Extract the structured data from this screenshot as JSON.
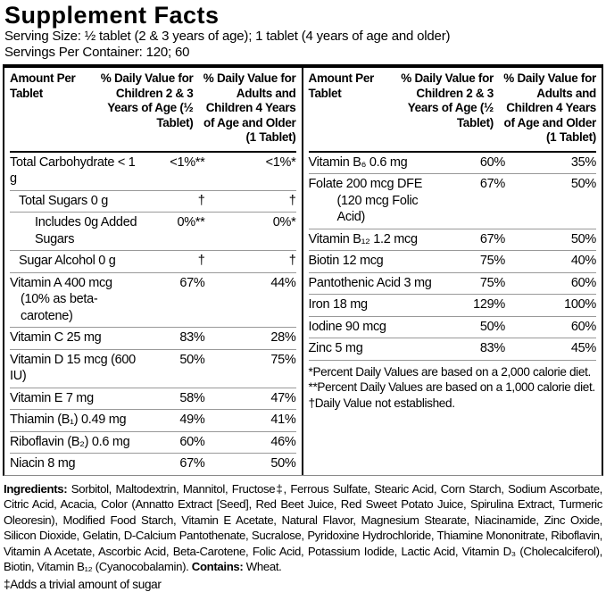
{
  "title": "Supplement Facts",
  "serving": {
    "size": "Serving Size: ½ tablet (2 & 3 years of age); 1 tablet (4 years of age and older)",
    "per_container": "Servings Per Container: 120; 60"
  },
  "table": {
    "header": {
      "amount": "Amount Per Tablet",
      "dv_children": "% Daily Value for Children 2 & 3 Years of Age (½ Tablet)",
      "dv_adults": "% Daily Value for Adults and Children 4 Years of Age and Older (1 Tablet)"
    },
    "left_rows": [
      {
        "name": "Total Carbohydrate < 1 g",
        "dv1": "<1%**",
        "dv2": "<1%*"
      },
      {
        "name": "Total Sugars 0 g",
        "dv1": "†",
        "dv2": "†"
      },
      {
        "name": "Includes 0g Added Sugars",
        "dv1": "0%**",
        "dv2": "0%*"
      },
      {
        "name": "Sugar Alcohol 0 g",
        "dv1": "†",
        "dv2": "†"
      },
      {
        "name": "Vitamin A 400 mcg",
        "name2": "(10% as beta-carotene)",
        "dv1": "67%",
        "dv2": "44%"
      },
      {
        "name": "Vitamin C 25 mg",
        "dv1": "83%",
        "dv2": "28%"
      },
      {
        "name": "Vitamin D 15 mcg (600 IU)",
        "dv1": "50%",
        "dv2": "75%"
      },
      {
        "name": "Vitamin E 7 mg",
        "dv1": "58%",
        "dv2": "47%"
      },
      {
        "name": "Thiamin (B₁) 0.49 mg",
        "dv1": "49%",
        "dv2": "41%"
      },
      {
        "name": "Riboflavin (B₂) 0.6 mg",
        "dv1": "60%",
        "dv2": "46%"
      },
      {
        "name": "Niacin 8 mg",
        "dv1": "67%",
        "dv2": "50%"
      }
    ],
    "right_rows": [
      {
        "name": "Vitamin B₆ 0.6 mg",
        "dv1": "60%",
        "dv2": "35%"
      },
      {
        "name": "Folate 200 mcg DFE",
        "name2": "(120 mcg Folic Acid)",
        "dv1": "67%",
        "dv2": "50%"
      },
      {
        "name": "Vitamin B₁₂ 1.2 mcg",
        "dv1": "67%",
        "dv2": "50%"
      },
      {
        "name": "Biotin 12 mcg",
        "dv1": "75%",
        "dv2": "40%"
      },
      {
        "name": "Pantothenic Acid 3 mg",
        "dv1": "75%",
        "dv2": "60%"
      },
      {
        "name": "Iron 18 mg",
        "dv1": "129%",
        "dv2": "100%"
      },
      {
        "name": "Iodine 90 mcg",
        "dv1": "50%",
        "dv2": "60%"
      },
      {
        "name": "Zinc 5 mg",
        "dv1": "83%",
        "dv2": "45%"
      }
    ],
    "footnotes": {
      "line1": "*Percent Daily Values are based on a 2,000 calorie diet.",
      "line2": "**Percent Daily Values are based on a 1,000 calorie diet.",
      "line3": "†Daily Value not established."
    }
  },
  "ingredients": {
    "label": "Ingredients:",
    "text": " Sorbitol, Maltodextrin, Mannitol, Fructose‡, Ferrous Sulfate, Stearic Acid, Corn Starch, Sodium Ascorbate, Citric Acid, Acacia, Color (Annatto Extract [Seed], Red Beet Juice, Red Sweet Potato Juice, Spirulina Extract, Turmeric Oleoresin), Modified Food Starch, Vitamin E Acetate, Natural Flavor, Magnesium Stearate, Niacinamide, Zinc Oxide, Silicon Dioxide, Gelatin, D-Calcium Pantothenate, Sucralose, Pyridoxine Hydrochloride, Thiamine Mononitrate, Riboflavin, Vitamin A Acetate, Ascorbic Acid, Beta-Carotene, Folic Acid, Potassium Iodide, Lactic Acid, Vitamin D₃ (Cholecalciferol), Biotin, Vitamin B₁₂ (Cyanocobalamin). ",
    "contains_label": "Contains:",
    "contains_text": " Wheat."
  },
  "footer_note": "‡Adds a trivial amount of sugar"
}
